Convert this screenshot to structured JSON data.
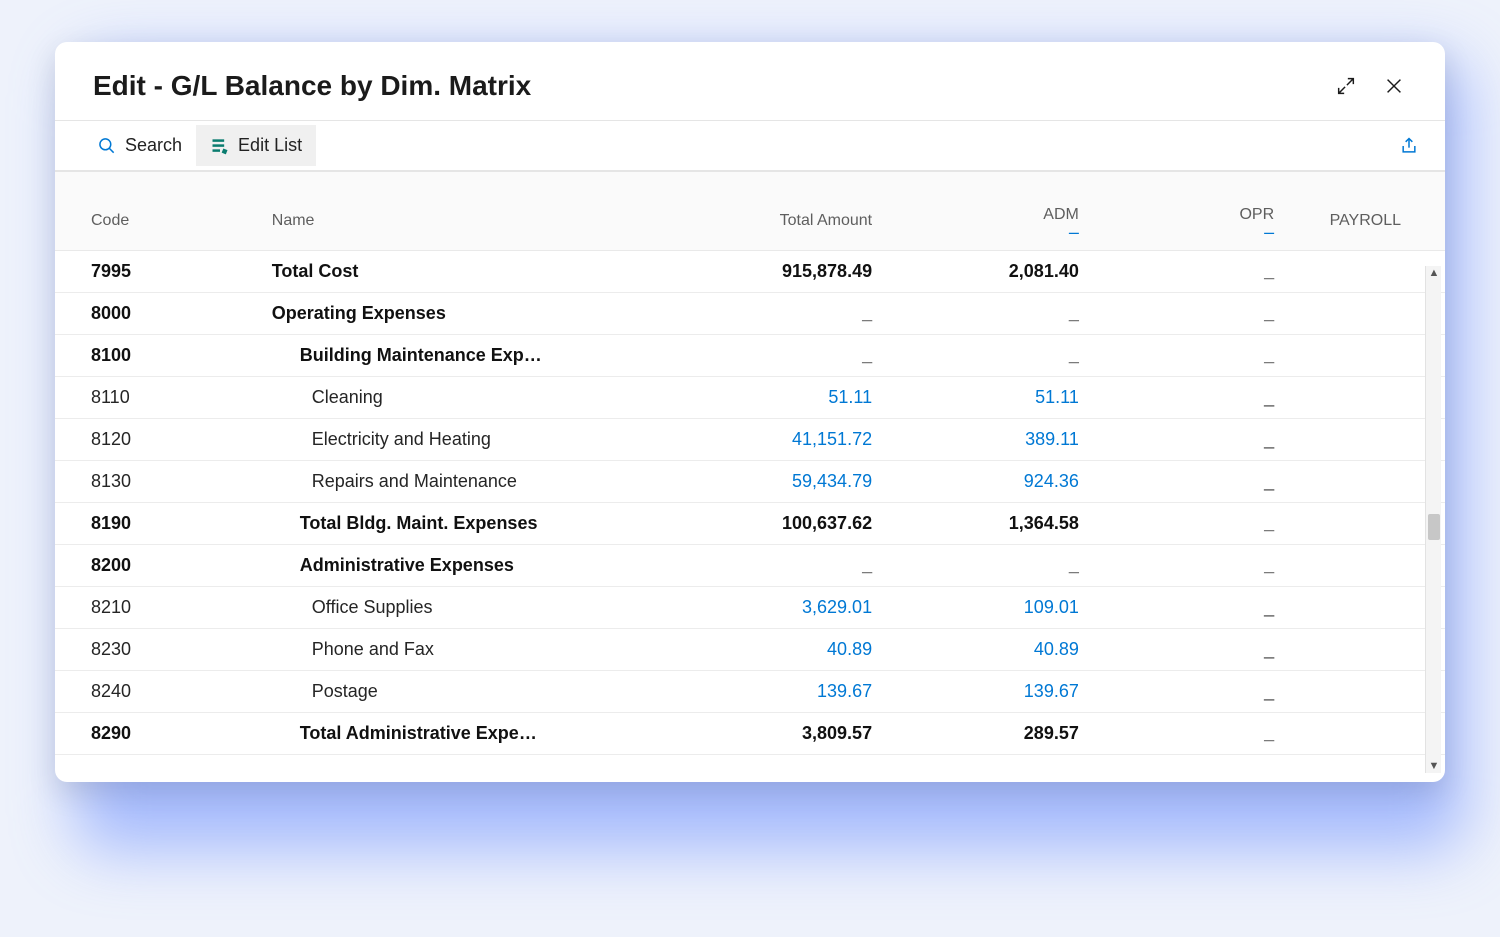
{
  "window": {
    "title": "Edit - G/L Balance by Dim. Matrix"
  },
  "toolbar": {
    "search_label": "Search",
    "edit_list_label": "Edit List"
  },
  "colors": {
    "link": "#0078d4",
    "accent_green": "#0a7c6f",
    "text": "#1b1b1b",
    "border": "#e5e5e5",
    "shadow_glow": "#6a8dff",
    "bg": "#eef2fb"
  },
  "grid": {
    "columns": [
      {
        "key": "code",
        "label": "Code",
        "align": "left",
        "sub_dash": false
      },
      {
        "key": "name",
        "label": "Name",
        "align": "left",
        "sub_dash": false
      },
      {
        "key": "total",
        "label": "Total Amount",
        "align": "right",
        "sub_dash": false
      },
      {
        "key": "adm",
        "label": "ADM",
        "align": "right",
        "sub_dash": true
      },
      {
        "key": "opr",
        "label": "OPR",
        "align": "right",
        "sub_dash": true
      },
      {
        "key": "pay",
        "label": "PAYROLL",
        "align": "right",
        "sub_dash": false
      }
    ],
    "rows": [
      {
        "code": "7995",
        "name": "Total Cost",
        "indent": 0,
        "bold": true,
        "total": "915,878.49",
        "adm": "2,081.40",
        "opr": "_",
        "pay": "",
        "link": false
      },
      {
        "code": "8000",
        "name": "Operating Expenses",
        "indent": 0,
        "bold": true,
        "total": "_",
        "adm": "_",
        "opr": "_",
        "pay": "",
        "link": false
      },
      {
        "code": "8100",
        "name": "Building Maintenance Exp…",
        "indent": 1,
        "bold": true,
        "total": "_",
        "adm": "_",
        "opr": "_",
        "pay": "",
        "link": false
      },
      {
        "code": "8110",
        "name": "Cleaning",
        "indent": 2,
        "bold": false,
        "total": "51.11",
        "adm": "51.11",
        "opr": "_",
        "pay": "",
        "link": true
      },
      {
        "code": "8120",
        "name": "Electricity and Heating",
        "indent": 2,
        "bold": false,
        "total": "41,151.72",
        "adm": "389.11",
        "opr": "_",
        "pay": "",
        "link": true
      },
      {
        "code": "8130",
        "name": "Repairs and Maintenance",
        "indent": 2,
        "bold": false,
        "total": "59,434.79",
        "adm": "924.36",
        "opr": "_",
        "pay": "",
        "link": true
      },
      {
        "code": "8190",
        "name": "Total Bldg. Maint. Expenses",
        "indent": 1,
        "bold": true,
        "total": "100,637.62",
        "adm": "1,364.58",
        "opr": "_",
        "pay": "",
        "link": false
      },
      {
        "code": "8200",
        "name": "Administrative Expenses",
        "indent": 1,
        "bold": true,
        "total": "_",
        "adm": "_",
        "opr": "_",
        "pay": "",
        "link": false
      },
      {
        "code": "8210",
        "name": "Office Supplies",
        "indent": 2,
        "bold": false,
        "total": "3,629.01",
        "adm": "109.01",
        "opr": "_",
        "pay": "",
        "link": true
      },
      {
        "code": "8230",
        "name": "Phone and Fax",
        "indent": 2,
        "bold": false,
        "total": "40.89",
        "adm": "40.89",
        "opr": "_",
        "pay": "",
        "link": true
      },
      {
        "code": "8240",
        "name": "Postage",
        "indent": 2,
        "bold": false,
        "total": "139.67",
        "adm": "139.67",
        "opr": "_",
        "pay": "",
        "link": true
      },
      {
        "code": "8290",
        "name": "Total Administrative Expe…",
        "indent": 1,
        "bold": true,
        "total": "3,809.57",
        "adm": "289.57",
        "opr": "_",
        "pay": "",
        "link": false
      }
    ]
  },
  "scrollbar": {
    "thumb_top_pct": 49,
    "thumb_height_pct": 5
  }
}
